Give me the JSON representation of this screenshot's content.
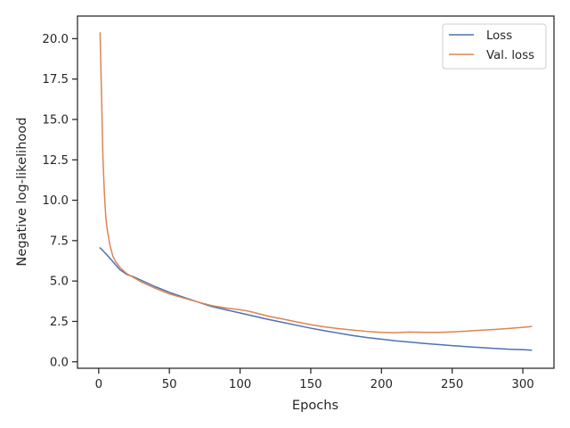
{
  "chart_data": {
    "type": "line",
    "xlabel": "Epochs",
    "ylabel": "Negative log-likelihood",
    "xlim": [
      -15,
      322
    ],
    "ylim": [
      -0.4,
      21.4
    ],
    "xticks": [
      0,
      50,
      100,
      150,
      200,
      250,
      300
    ],
    "xtick_labels": [
      "0",
      "50",
      "100",
      "150",
      "200",
      "250",
      "300"
    ],
    "yticks": [
      0.0,
      2.5,
      5.0,
      7.5,
      10.0,
      12.5,
      15.0,
      17.5,
      20.0
    ],
    "ytick_labels": [
      "0.0",
      "2.5",
      "5.0",
      "7.5",
      "10.0",
      "12.5",
      "15.0",
      "17.5",
      "20.0"
    ],
    "grid": false,
    "legend_position": "top-right",
    "series": [
      {
        "name": "Loss",
        "color": "#4c72b0",
        "x": [
          1,
          5,
          10,
          15,
          20,
          25,
          30,
          40,
          50,
          60,
          70,
          80,
          90,
          100,
          110,
          120,
          130,
          140,
          150,
          160,
          170,
          180,
          190,
          200,
          210,
          220,
          230,
          240,
          250,
          260,
          270,
          280,
          290,
          300,
          306
        ],
        "y": [
          7.05,
          6.7,
          6.2,
          5.7,
          5.4,
          5.25,
          5.05,
          4.65,
          4.3,
          4.0,
          3.7,
          3.42,
          3.22,
          3.02,
          2.82,
          2.62,
          2.44,
          2.26,
          2.08,
          1.92,
          1.77,
          1.62,
          1.5,
          1.4,
          1.3,
          1.22,
          1.14,
          1.07,
          1.0,
          0.94,
          0.88,
          0.83,
          0.78,
          0.75,
          0.72
        ]
      },
      {
        "name": "Val. loss",
        "color": "#dd8452",
        "x": [
          1,
          2,
          3,
          4,
          5,
          6,
          8,
          10,
          12,
          15,
          18,
          20,
          25,
          30,
          40,
          50,
          60,
          70,
          80,
          90,
          100,
          105,
          110,
          120,
          130,
          140,
          150,
          160,
          170,
          180,
          190,
          200,
          210,
          220,
          230,
          240,
          250,
          260,
          270,
          280,
          290,
          300,
          306
        ],
        "y": [
          20.35,
          16.5,
          12.6,
          10.5,
          9.0,
          8.2,
          7.2,
          6.55,
          6.2,
          5.85,
          5.6,
          5.45,
          5.2,
          4.95,
          4.55,
          4.2,
          3.95,
          3.7,
          3.48,
          3.33,
          3.22,
          3.15,
          3.05,
          2.82,
          2.65,
          2.47,
          2.3,
          2.16,
          2.05,
          1.96,
          1.88,
          1.82,
          1.8,
          1.84,
          1.82,
          1.82,
          1.85,
          1.9,
          1.95,
          2.0,
          2.06,
          2.13,
          2.18
        ]
      }
    ]
  }
}
